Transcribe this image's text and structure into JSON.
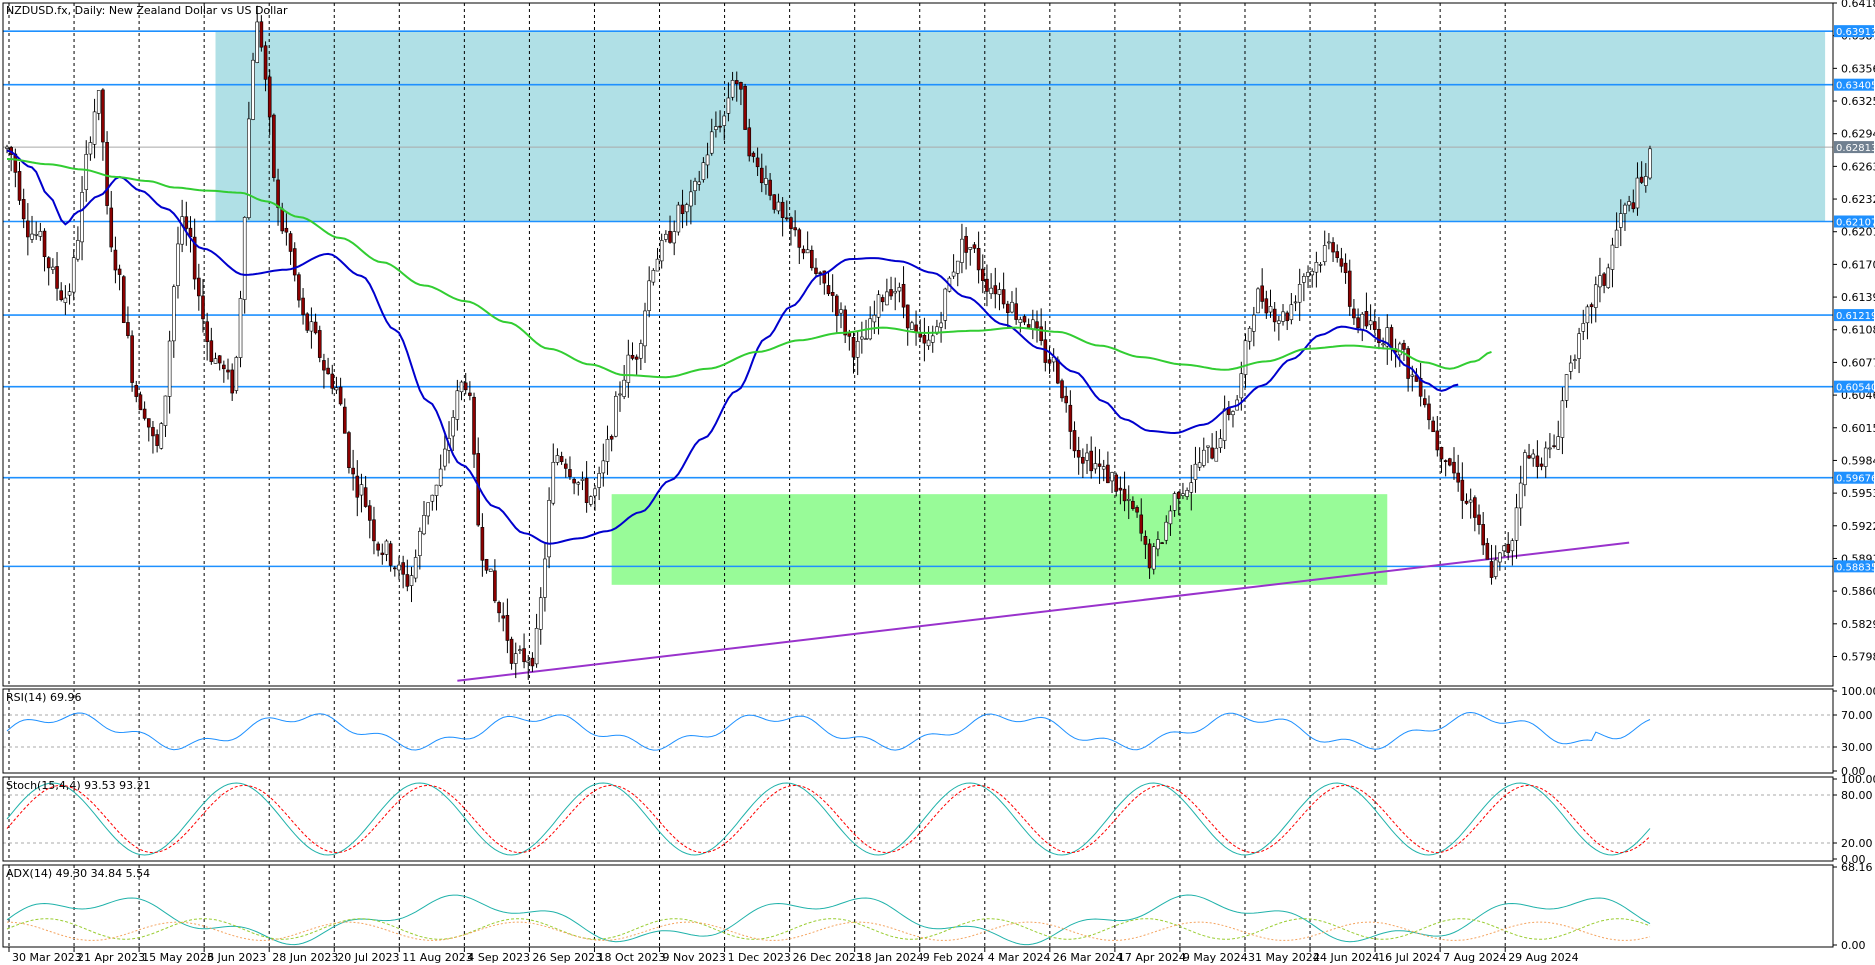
{
  "chart_data": {
    "type": "candlestick",
    "title": "NZDUSD.fx, Daily:  New Zealand Dollar vs US Dollar",
    "price_axis": {
      "min": 0.577,
      "max": 0.6418,
      "ticks": [
        "0.64180",
        "0.63870",
        "0.63560",
        "0.63250",
        "0.62940",
        "0.62630",
        "0.62320",
        "0.62010",
        "0.61700",
        "0.61390",
        "0.61080",
        "0.60770",
        "0.60460",
        "0.60150",
        "0.59840",
        "0.59530",
        "0.59220",
        "0.58910",
        "0.58600",
        "0.58290",
        "0.57980"
      ]
    },
    "date_labels": [
      "30 Mar 2023",
      "21 Apr 2023",
      "15 May 2023",
      "6 Jun 2023",
      "28 Jun 2023",
      "20 Jul 2023",
      "11 Aug 2023",
      "4 Sep 2023",
      "26 Sep 2023",
      "18 Oct 2023",
      "9 Nov 2023",
      "1 Dec 2023",
      "26 Dec 2023",
      "18 Jan 2024",
      "9 Feb 2024",
      "4 Mar 2024",
      "26 Mar 2024",
      "17 Apr 2024",
      "9 May 2024",
      "31 May 2024",
      "24 Jun 2024",
      "16 Jul 2024",
      "7 Aug 2024",
      "29 Aug 2024"
    ],
    "horizontal_levels": [
      {
        "price": 0.63913,
        "label": "0.63913"
      },
      {
        "price": 0.63405,
        "label": "0.63405"
      },
      {
        "price": 0.62107,
        "label": "0.62107"
      },
      {
        "price": 0.61219,
        "label": "0.61219"
      },
      {
        "price": 0.6054,
        "label": "0.60540"
      },
      {
        "price": 0.59676,
        "label": "0.59676"
      },
      {
        "price": 0.58835,
        "label": "0.58835"
      }
    ],
    "current_price": {
      "price": 0.62813,
      "label": "0.62813"
    },
    "zones": [
      {
        "name": "resistance-zone",
        "color": "#b0e0e6",
        "from_index": 50,
        "to_index": 436,
        "price_top": 0.63913,
        "price_bottom": 0.62107
      },
      {
        "name": "support-zone",
        "color": "#98fb98",
        "from_index": 145,
        "to_index": 331,
        "price_top": 0.5952,
        "price_bottom": 0.5866
      }
    ],
    "trendline": {
      "color": "#9932cc",
      "start_index": 108,
      "start_price": 0.5775,
      "end_index": 389,
      "end_price": 0.5906
    },
    "moving_averages": [
      {
        "name": "MA fast",
        "color": "#0000cd",
        "points": [
          [
            0,
            0.6278
          ],
          [
            6,
            0.6262
          ],
          [
            10,
            0.6235
          ],
          [
            14,
            0.6208
          ],
          [
            17,
            0.622
          ],
          [
            22,
            0.6235
          ],
          [
            27,
            0.6253
          ],
          [
            32,
            0.624
          ],
          [
            38,
            0.6223
          ],
          [
            47,
            0.6185
          ],
          [
            57,
            0.616
          ],
          [
            67,
            0.6165
          ],
          [
            77,
            0.618
          ],
          [
            85,
            0.6159
          ],
          [
            93,
            0.6108
          ],
          [
            101,
            0.604
          ],
          [
            109,
            0.598
          ],
          [
            117,
            0.594
          ],
          [
            124,
            0.5915
          ],
          [
            130,
            0.5905
          ],
          [
            137,
            0.591
          ],
          [
            144,
            0.5917
          ],
          [
            152,
            0.5935
          ],
          [
            159,
            0.5965
          ],
          [
            167,
            0.6005
          ],
          [
            175,
            0.605
          ],
          [
            182,
            0.61
          ],
          [
            188,
            0.613
          ],
          [
            195,
            0.616
          ],
          [
            202,
            0.6175
          ],
          [
            208,
            0.6176
          ],
          [
            214,
            0.6173
          ],
          [
            222,
            0.6162
          ],
          [
            230,
            0.6139
          ],
          [
            239,
            0.6113
          ],
          [
            248,
            0.609
          ],
          [
            256,
            0.6068
          ],
          [
            263,
            0.604
          ],
          [
            268,
            0.6023
          ],
          [
            274,
            0.6012
          ],
          [
            280,
            0.601
          ],
          [
            287,
            0.6018
          ],
          [
            294,
            0.6035
          ],
          [
            301,
            0.6055
          ],
          [
            308,
            0.608
          ],
          [
            315,
            0.6103
          ],
          [
            320,
            0.6111
          ],
          [
            325,
            0.6108
          ],
          [
            330,
            0.6097
          ],
          [
            336,
            0.6073
          ],
          [
            340,
            0.6058
          ],
          [
            344,
            0.605
          ],
          [
            348,
            0.6056
          ]
        ]
      },
      {
        "name": "MA slow",
        "color": "#32cd32",
        "points": [
          [
            0,
            0.627
          ],
          [
            10,
            0.6265
          ],
          [
            18,
            0.626
          ],
          [
            26,
            0.6253
          ],
          [
            34,
            0.6249
          ],
          [
            40,
            0.6243
          ],
          [
            48,
            0.624
          ],
          [
            56,
            0.6238
          ],
          [
            62,
            0.623
          ],
          [
            70,
            0.6215
          ],
          [
            80,
            0.6195
          ],
          [
            90,
            0.6172
          ],
          [
            100,
            0.615
          ],
          [
            110,
            0.6135
          ],
          [
            120,
            0.6115
          ],
          [
            130,
            0.609
          ],
          [
            140,
            0.6075
          ],
          [
            148,
            0.6065
          ],
          [
            158,
            0.6063
          ],
          [
            168,
            0.6071
          ],
          [
            180,
            0.6087
          ],
          [
            190,
            0.6098
          ],
          [
            200,
            0.6105
          ],
          [
            210,
            0.611
          ],
          [
            220,
            0.6105
          ],
          [
            232,
            0.6107
          ],
          [
            242,
            0.611
          ],
          [
            252,
            0.6106
          ],
          [
            262,
            0.6093
          ],
          [
            272,
            0.6082
          ],
          [
            282,
            0.6075
          ],
          [
            292,
            0.607
          ],
          [
            302,
            0.6078
          ],
          [
            312,
            0.609
          ],
          [
            322,
            0.6093
          ],
          [
            332,
            0.609
          ],
          [
            340,
            0.6077
          ],
          [
            346,
            0.6071
          ],
          [
            352,
            0.6078
          ],
          [
            356,
            0.6087
          ]
        ]
      }
    ],
    "panels": [
      {
        "name": "rsi",
        "label": "RSI(14) 69.96",
        "axis_ticks": [
          "100.00",
          "70.00",
          "30.00",
          "0.00"
        ],
        "min": 0,
        "max": 100,
        "levels": [
          70,
          30
        ],
        "color": "#1e90ff"
      },
      {
        "name": "stochastic",
        "label": "Stoch(15,4,4) 93.53 93.21",
        "axis_ticks": [
          "100.00",
          "80.00",
          "20.00",
          "0.00"
        ],
        "min": 0,
        "max": 100,
        "levels": [
          80,
          20
        ],
        "main_color": "#20b2aa",
        "signal_color": "#ff0000"
      },
      {
        "name": "adx",
        "label": "ADX(14) 49.30 34.84 5.54",
        "axis_ticks": [
          "68.16",
          "0.00"
        ],
        "min": 0,
        "max": 68.16,
        "main_color": "#20b2aa",
        "plus_di_color": "#9acd32",
        "minus_di_color": "#f4a460"
      }
    ]
  }
}
